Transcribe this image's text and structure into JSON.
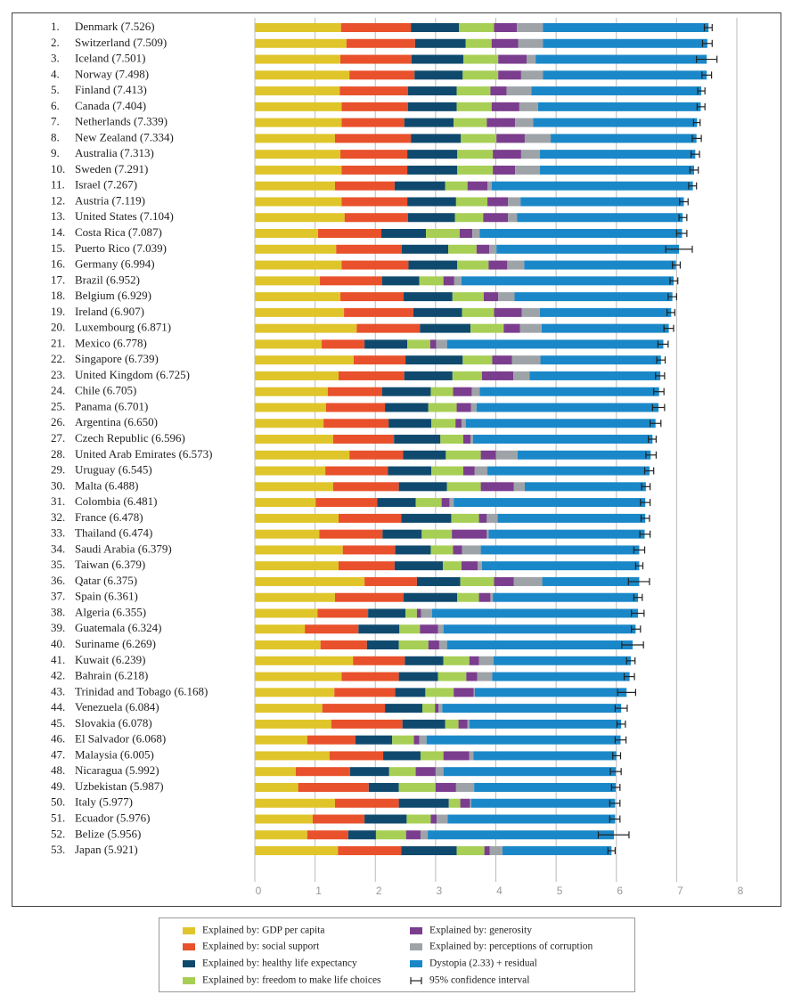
{
  "chart_data": {
    "type": "bar",
    "orientation": "horizontal",
    "stacked": true,
    "grid": true,
    "ranks": [
      "1.",
      "2.",
      "3.",
      "4.",
      "5.",
      "6.",
      "7.",
      "8.",
      "9.",
      "10.",
      "11.",
      "12.",
      "13.",
      "14.",
      "15.",
      "16.",
      "17.",
      "18.",
      "19.",
      "20.",
      "21.",
      "22.",
      "23.",
      "24.",
      "25.",
      "26.",
      "27.",
      "28.",
      "29.",
      "30.",
      "31.",
      "32.",
      "33.",
      "34.",
      "35.",
      "36.",
      "37.",
      "38.",
      "39.",
      "40.",
      "41.",
      "42.",
      "43.",
      "44.",
      "45.",
      "46.",
      "47.",
      "48.",
      "49.",
      "50.",
      "51.",
      "52.",
      "53."
    ],
    "categories": [
      "Denmark (7.526)",
      "Switzerland (7.509)",
      "Iceland (7.501)",
      "Norway (7.498)",
      "Finland (7.413)",
      "Canada (7.404)",
      "Netherlands (7.339)",
      "New Zealand (7.334)",
      "Australia (7.313)",
      "Sweden (7.291)",
      "Israel (7.267)",
      "Austria (7.119)",
      "United States (7.104)",
      "Costa Rica (7.087)",
      "Puerto Rico (7.039)",
      "Germany (6.994)",
      "Brazil (6.952)",
      "Belgium (6.929)",
      "Ireland (6.907)",
      "Luxembourg (6.871)",
      "Mexico (6.778)",
      "Singapore (6.739)",
      "United Kingdom (6.725)",
      "Chile (6.705)",
      "Panama (6.701)",
      "Argentina (6.650)",
      "Czech Republic (6.596)",
      "United Arab Emirates (6.573)",
      "Uruguay (6.545)",
      "Malta (6.488)",
      "Colombia (6.481)",
      "France (6.478)",
      "Thailand (6.474)",
      "Saudi Arabia (6.379)",
      "Taiwan (6.379)",
      "Qatar (6.375)",
      "Spain (6.361)",
      "Algeria (6.355)",
      "Guatemala (6.324)",
      "Suriname (6.269)",
      "Kuwait (6.239)",
      "Bahrain (6.218)",
      "Trinidad and Tobago (6.168)",
      "Venezuela (6.084)",
      "Slovakia (6.078)",
      "El Salvador (6.068)",
      "Malaysia (6.005)",
      "Nicaragua (5.992)",
      "Uzbekistan (5.987)",
      "Italy (5.977)",
      "Ecuador (5.976)",
      "Belize (5.956)",
      "Japan (5.921)"
    ],
    "series": [
      {
        "name": "Explained by: GDP per capita",
        "color": "#e0c52a",
        "values": [
          1.43,
          1.52,
          1.42,
          1.57,
          1.41,
          1.44,
          1.44,
          1.33,
          1.42,
          1.44,
          1.33,
          1.44,
          1.49,
          1.05,
          1.35,
          1.44,
          1.08,
          1.42,
          1.48,
          1.69,
          1.11,
          1.64,
          1.39,
          1.21,
          1.18,
          1.14,
          1.3,
          1.57,
          1.17,
          1.3,
          1.01,
          1.39,
          1.07,
          1.46,
          1.39,
          1.82,
          1.33,
          1.04,
          0.83,
          1.09,
          1.63,
          1.44,
          1.32,
          1.12,
          1.27,
          0.87,
          1.24,
          0.68,
          0.72,
          1.33,
          0.96,
          0.87,
          1.38
        ]
      },
      {
        "name": "Explained by: social support",
        "color": "#e8512b",
        "values": [
          1.16,
          1.14,
          1.18,
          1.08,
          1.13,
          1.1,
          1.04,
          1.26,
          1.11,
          1.09,
          0.99,
          1.09,
          1.05,
          1.05,
          1.09,
          1.11,
          1.03,
          1.05,
          1.15,
          1.05,
          0.71,
          0.86,
          1.09,
          0.9,
          0.98,
          1.08,
          1.01,
          0.89,
          1.04,
          1.09,
          1.02,
          1.04,
          1.05,
          0.87,
          0.93,
          0.87,
          1.14,
          0.84,
          0.89,
          0.77,
          0.86,
          0.95,
          1.01,
          1.04,
          1.18,
          0.8,
          0.89,
          0.9,
          1.17,
          1.06,
          0.86,
          0.68,
          1.05
        ]
      },
      {
        "name": "Explained by: healthy life expectancy",
        "color": "#0f4a6e",
        "values": [
          0.8,
          0.84,
          0.86,
          0.8,
          0.81,
          0.81,
          0.82,
          0.83,
          0.83,
          0.83,
          0.84,
          0.81,
          0.78,
          0.74,
          0.77,
          0.81,
          0.62,
          0.81,
          0.81,
          0.84,
          0.71,
          0.95,
          0.8,
          0.81,
          0.72,
          0.71,
          0.77,
          0.71,
          0.72,
          0.8,
          0.64,
          0.83,
          0.65,
          0.59,
          0.8,
          0.72,
          0.89,
          0.62,
          0.68,
          0.53,
          0.64,
          0.65,
          0.5,
          0.62,
          0.71,
          0.61,
          0.62,
          0.65,
          0.5,
          0.83,
          0.7,
          0.46,
          0.92
        ]
      },
      {
        "name": "Explained by: freedom to make life choices",
        "color": "#a7cf55",
        "values": [
          0.58,
          0.43,
          0.58,
          0.59,
          0.56,
          0.58,
          0.55,
          0.59,
          0.59,
          0.59,
          0.37,
          0.52,
          0.47,
          0.56,
          0.47,
          0.52,
          0.4,
          0.52,
          0.53,
          0.55,
          0.38,
          0.49,
          0.49,
          0.37,
          0.47,
          0.4,
          0.38,
          0.58,
          0.53,
          0.56,
          0.43,
          0.46,
          0.5,
          0.37,
          0.31,
          0.56,
          0.36,
          0.19,
          0.34,
          0.49,
          0.43,
          0.47,
          0.47,
          0.21,
          0.22,
          0.36,
          0.38,
          0.44,
          0.61,
          0.19,
          0.4,
          0.5,
          0.46
        ]
      },
      {
        "name": "Explained by: generosity",
        "color": "#7b3d8e",
        "values": [
          0.38,
          0.44,
          0.47,
          0.38,
          0.27,
          0.46,
          0.47,
          0.47,
          0.47,
          0.37,
          0.33,
          0.34,
          0.41,
          0.21,
          0.21,
          0.31,
          0.18,
          0.24,
          0.46,
          0.27,
          0.1,
          0.33,
          0.52,
          0.31,
          0.24,
          0.1,
          0.12,
          0.25,
          0.19,
          0.55,
          0.13,
          0.13,
          0.58,
          0.15,
          0.27,
          0.33,
          0.19,
          0.07,
          0.3,
          0.18,
          0.16,
          0.18,
          0.33,
          0.06,
          0.15,
          0.09,
          0.43,
          0.33,
          0.34,
          0.16,
          0.1,
          0.24,
          0.09
        ]
      },
      {
        "name": "Explained by: perceptions of corruption",
        "color": "#9ea3a8",
        "values": [
          0.43,
          0.41,
          0.15,
          0.36,
          0.41,
          0.31,
          0.3,
          0.43,
          0.31,
          0.41,
          0.07,
          0.21,
          0.15,
          0.12,
          0.12,
          0.28,
          0.12,
          0.27,
          0.3,
          0.36,
          0.18,
          0.47,
          0.27,
          0.13,
          0.09,
          0.07,
          0.04,
          0.36,
          0.21,
          0.18,
          0.07,
          0.18,
          0.03,
          0.31,
          0.07,
          0.47,
          0.04,
          0.18,
          0.09,
          0.13,
          0.24,
          0.25,
          0.02,
          0.06,
          0.03,
          0.12,
          0.07,
          0.13,
          0.3,
          0.02,
          0.18,
          0.12,
          0.21
        ]
      },
      {
        "name": "Dystopia (2.33) + residual",
        "color": "#1a88c8",
        "values": [
          2.75,
          2.73,
          2.84,
          2.72,
          2.82,
          2.7,
          2.72,
          2.42,
          2.58,
          2.56,
          3.34,
          2.71,
          2.75,
          3.36,
          3.03,
          2.52,
          3.52,
          2.62,
          2.18,
          2.11,
          3.59,
          2.0,
          2.17,
          2.98,
          3.02,
          3.15,
          2.98,
          2.21,
          2.69,
          2.01,
          3.18,
          2.45,
          2.59,
          2.63,
          2.61,
          1.61,
          2.41,
          3.42,
          3.19,
          3.08,
          2.28,
          2.28,
          2.52,
          2.97,
          2.52,
          3.22,
          2.37,
          2.86,
          2.35,
          2.39,
          2.78,
          3.09,
          1.81
        ]
      }
    ],
    "ci": {
      "name": "95% confidence interval",
      "color": "#222222",
      "low": [
        7.46,
        7.43,
        7.33,
        7.42,
        7.35,
        7.34,
        7.28,
        7.26,
        7.24,
        7.22,
        7.2,
        7.05,
        7.04,
        7.0,
        6.82,
        6.93,
        6.89,
        6.86,
        6.84,
        6.79,
        6.69,
        6.67,
        6.65,
        6.62,
        6.6,
        6.56,
        6.53,
        6.49,
        6.47,
        6.42,
        6.4,
        6.41,
        6.39,
        6.29,
        6.32,
        6.2,
        6.29,
        6.25,
        6.25,
        6.09,
        6.17,
        6.13,
        6.02,
        5.98,
        6.01,
        5.98,
        5.94,
        5.9,
        5.92,
        5.89,
        5.89,
        5.7,
        5.86
      ],
      "high": [
        7.59,
        7.59,
        7.67,
        7.58,
        7.47,
        7.47,
        7.39,
        7.41,
        7.38,
        7.36,
        7.33,
        7.19,
        7.17,
        7.17,
        7.26,
        7.06,
        7.02,
        7.0,
        6.97,
        6.95,
        6.86,
        6.81,
        6.8,
        6.79,
        6.8,
        6.74,
        6.66,
        6.66,
        6.62,
        6.56,
        6.56,
        6.55,
        6.56,
        6.47,
        6.44,
        6.55,
        6.43,
        6.46,
        6.4,
        6.45,
        6.31,
        6.3,
        6.32,
        6.18,
        6.15,
        6.16,
        6.07,
        6.08,
        6.06,
        6.06,
        6.06,
        6.21,
        5.98
      ]
    },
    "xlim": [
      0,
      8
    ],
    "xticks": [
      0,
      1,
      2,
      3,
      4,
      5,
      6,
      7,
      8
    ]
  }
}
